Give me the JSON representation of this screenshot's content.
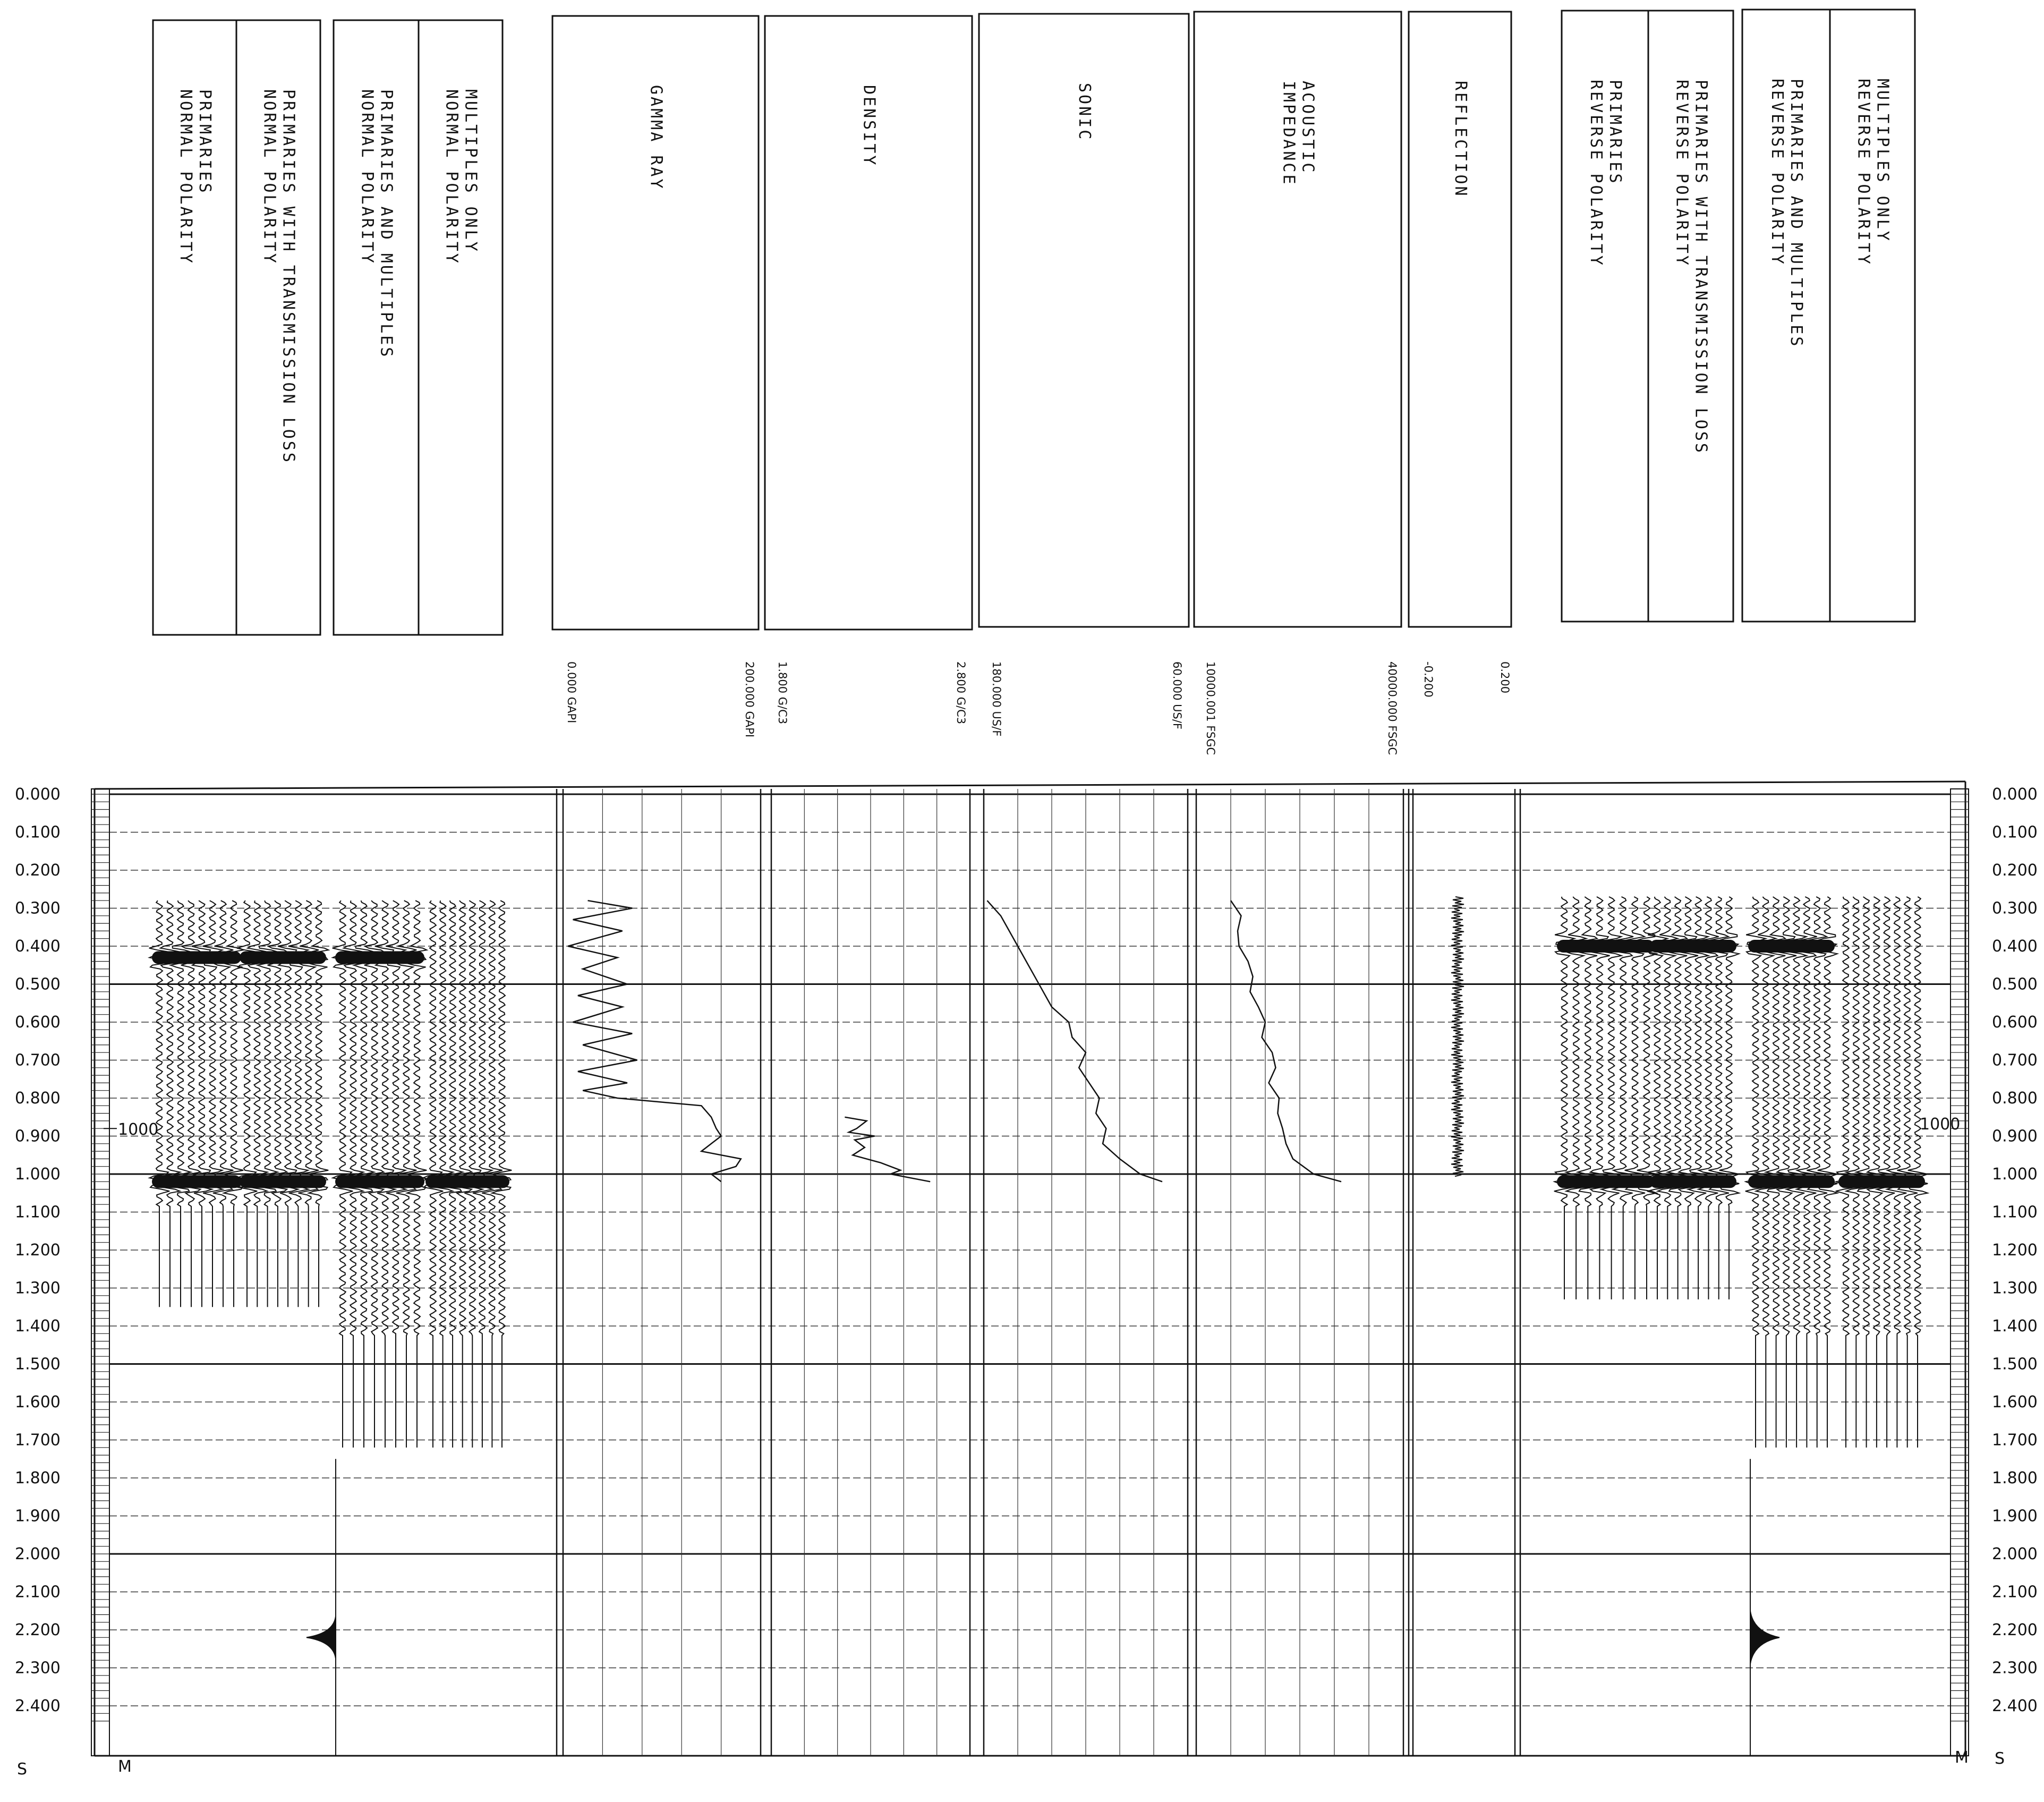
{
  "header_panels": [
    {
      "id": "primaries-normal",
      "lines": [
        "PRIMARIES",
        "NORMAL POLARITY"
      ]
    },
    {
      "id": "primaries-transmission-normal",
      "lines": [
        "PRIMARIES WITH TRANSMISSION LOSS",
        "NORMAL POLARITY"
      ]
    },
    {
      "id": "primaries-multiples-normal",
      "lines": [
        "PRIMARIES AND MULTIPLES",
        "NORMAL POLARITY"
      ]
    },
    {
      "id": "multiples-normal",
      "lines": [
        "MULTIPLES ONLY",
        "NORMAL POLARITY"
      ]
    },
    {
      "id": "gamma-ray",
      "lines": [
        "GAMMA RAY"
      ]
    },
    {
      "id": "density",
      "lines": [
        "DENSITY"
      ]
    },
    {
      "id": "sonic",
      "lines": [
        "SONIC"
      ]
    },
    {
      "id": "acoustic-impedance",
      "lines": [
        "ACOUSTIC",
        "IMPEDANCE"
      ]
    },
    {
      "id": "reflection",
      "lines": [
        "REFLECTION"
      ]
    },
    {
      "id": "primaries-reverse",
      "lines": [
        "PRIMARIES",
        "REVERSE POLARITY"
      ]
    },
    {
      "id": "primaries-transmission-reverse",
      "lines": [
        "PRIMARIES WITH TRANSMISSION LOSS",
        "REVERSE POLARITY"
      ]
    },
    {
      "id": "primaries-multiples-reverse",
      "lines": [
        "PRIMARIES AND MULTIPLES",
        "REVERSE POLARITY"
      ]
    },
    {
      "id": "multiples-reverse",
      "lines": [
        "MULTIPLES ONLY",
        "REVERSE POLARITY"
      ]
    }
  ],
  "log_scales": {
    "gamma_ray": {
      "min": "0.000 GAPI",
      "max": "200.000 GAPI"
    },
    "density": {
      "min": "1.800 G/C3",
      "max": "2.800 G/C3"
    },
    "sonic": {
      "min": "180.000 US/F",
      "max": "60.000 US/F"
    },
    "acoustic_impedance": {
      "min": "10000.001 FSGC",
      "max": "40000.000 FSGC"
    },
    "reflection": {
      "min": "-0.200",
      "max": "0.200"
    }
  },
  "time_axis": {
    "unit_label": "S",
    "ticks": [
      "0.000",
      "0.100",
      "0.200",
      "0.300",
      "0.400",
      "0.500",
      "0.600",
      "0.700",
      "0.800",
      "0.900",
      "1.000",
      "1.100",
      "1.200",
      "1.300",
      "1.400",
      "1.500",
      "1.600",
      "1.700",
      "1.800",
      "1.900",
      "2.000",
      "2.100",
      "2.200",
      "2.300",
      "2.400"
    ],
    "depth_marker": "1000",
    "bottom_marker": "M"
  },
  "chart_data": {
    "type": "line",
    "title": "",
    "xlabel": "",
    "ylabel": "",
    "ylim": [
      0,
      2.4
    ],
    "y_unit": "S",
    "grid": true,
    "depth_marker": {
      "label": "1000",
      "time": 0.88
    },
    "logs": [
      {
        "name": "GAMMA RAY",
        "xlim": [
          0,
          200
        ],
        "unit": "GAPI",
        "t": [
          0.28,
          0.3,
          0.33,
          0.36,
          0.4,
          0.43,
          0.46,
          0.5,
          0.53,
          0.56,
          0.6,
          0.63,
          0.66,
          0.7,
          0.73,
          0.76,
          0.78,
          0.8,
          0.82,
          0.85,
          0.88,
          0.9,
          0.92,
          0.94,
          0.96,
          0.98,
          1.0,
          1.02
        ],
        "values": [
          25,
          70,
          10,
          60,
          5,
          55,
          20,
          65,
          15,
          60,
          10,
          70,
          20,
          75,
          15,
          65,
          20,
          55,
          140,
          150,
          155,
          160,
          150,
          140,
          180,
          175,
          150,
          160
        ]
      },
      {
        "name": "DENSITY",
        "xlim": [
          1.8,
          2.8
        ],
        "unit": "G/C3",
        "t": [
          0.85,
          0.86,
          0.88,
          0.89,
          0.9,
          0.91,
          0.93,
          0.95,
          0.97,
          0.99,
          1.0,
          1.02
        ],
        "values": [
          2.17,
          2.28,
          2.23,
          2.19,
          2.32,
          2.22,
          2.27,
          2.21,
          2.35,
          2.45,
          2.4,
          2.6
        ]
      },
      {
        "name": "SONIC",
        "xlim": [
          180,
          60
        ],
        "unit": "US/F",
        "t": [
          0.28,
          0.32,
          0.36,
          0.4,
          0.44,
          0.48,
          0.52,
          0.56,
          0.6,
          0.64,
          0.68,
          0.72,
          0.76,
          0.8,
          0.84,
          0.88,
          0.92,
          0.96,
          1.0,
          1.02
        ],
        "values": [
          178,
          170,
          165,
          160,
          155,
          150,
          145,
          140,
          130,
          128,
          120,
          124,
          118,
          112,
          114,
          108,
          110,
          100,
          88,
          75
        ]
      },
      {
        "name": "ACOUSTIC IMPEDANCE",
        "xlim": [
          10000,
          40000
        ],
        "unit": "FSGC",
        "t": [
          0.28,
          0.32,
          0.36,
          0.4,
          0.44,
          0.48,
          0.52,
          0.56,
          0.6,
          0.64,
          0.68,
          0.72,
          0.76,
          0.8,
          0.84,
          0.88,
          0.92,
          0.96,
          1.0,
          1.02
        ],
        "values": [
          15000,
          16500,
          16000,
          16200,
          17500,
          18200,
          17800,
          19000,
          20000,
          19500,
          21000,
          21500,
          20500,
          22000,
          21800,
          22500,
          23000,
          24000,
          27000,
          31000
        ]
      },
      {
        "name": "REFLECTION",
        "xlim": [
          -0.2,
          0.2
        ],
        "unit": "",
        "t_range": [
          0.27,
          1.01
        ],
        "values_note": "small reflection coefficients, near zero"
      }
    ],
    "synthetic_traces": [
      {
        "name": "PRIMARIES NORMAL POLARITY",
        "t_range": [
          0.28,
          1.35
        ],
        "polarity": "normal",
        "strong_events": [
          0.43,
          1.02
        ]
      },
      {
        "name": "PRIMARIES WITH TRANSMISSION LOSS NORMAL POLARITY",
        "t_range": [
          0.28,
          1.35
        ],
        "polarity": "normal",
        "strong_events": [
          0.43,
          1.02
        ]
      },
      {
        "name": "PRIMARIES AND MULTIPLES NORMAL POLARITY",
        "t_range": [
          0.28,
          1.72
        ],
        "polarity": "normal",
        "strong_events": [
          0.43,
          1.02
        ]
      },
      {
        "name": "MULTIPLES ONLY NORMAL POLARITY",
        "t_range": [
          0.28,
          1.72
        ],
        "polarity": "normal",
        "strong_events": [
          1.02
        ]
      },
      {
        "name": "PRIMARIES REVERSE POLARITY",
        "t_range": [
          0.27,
          1.33
        ],
        "polarity": "reverse",
        "strong_events": [
          0.4,
          1.02
        ]
      },
      {
        "name": "PRIMARIES WITH TRANSMISSION LOSS REVERSE POLARITY",
        "t_range": [
          0.27,
          1.33
        ],
        "polarity": "reverse",
        "strong_events": [
          0.4,
          1.02
        ]
      },
      {
        "name": "PRIMARIES AND MULTIPLES REVERSE POLARITY",
        "t_range": [
          0.27,
          1.72
        ],
        "polarity": "reverse",
        "strong_events": [
          0.4,
          1.02
        ]
      },
      {
        "name": "MULTIPLES ONLY REVERSE POLARITY",
        "t_range": [
          0.27,
          1.72
        ],
        "polarity": "reverse",
        "strong_events": [
          1.02
        ]
      }
    ],
    "wavelets": [
      {
        "side": "left",
        "t": 2.22
      },
      {
        "side": "right",
        "t": 2.22
      }
    ]
  }
}
